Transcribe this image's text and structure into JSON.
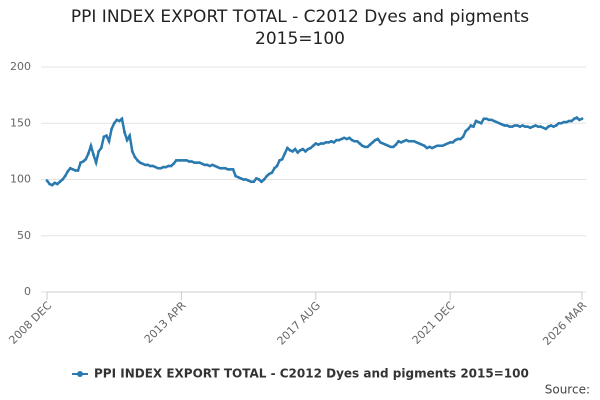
{
  "chart_data": {
    "type": "line",
    "title": "PPI INDEX EXPORT TOTAL - C2012 Dyes and pigments 2015=100",
    "source": "Source:",
    "categories": [
      "2008 DEC",
      null,
      null,
      null,
      null,
      null,
      null,
      null,
      null,
      null,
      null,
      null,
      null,
      null,
      null,
      null,
      null,
      null,
      null,
      null,
      null,
      null,
      null,
      null,
      null,
      null,
      null,
      null,
      null,
      null,
      null,
      null,
      null,
      null,
      null,
      null,
      null,
      null,
      null,
      null,
      null,
      null,
      null,
      null,
      null,
      null,
      null,
      null,
      null,
      null,
      null,
      null,
      "2013 APR",
      null,
      null,
      null,
      null,
      null,
      null,
      null,
      null,
      null,
      null,
      null,
      null,
      null,
      null,
      null,
      null,
      null,
      null,
      null,
      null,
      null,
      null,
      null,
      null,
      null,
      null,
      null,
      null,
      null,
      null,
      null,
      null,
      null,
      null,
      null,
      null,
      null,
      null,
      null,
      null,
      null,
      null,
      null,
      null,
      null,
      null,
      null,
      null,
      null,
      null,
      null,
      "2017 AUG",
      null,
      null,
      null,
      null,
      null,
      null,
      null,
      null,
      null,
      null,
      null,
      null,
      null,
      null,
      null,
      null,
      null,
      null,
      null,
      null,
      null,
      null,
      null,
      null,
      null,
      null,
      null,
      null,
      null,
      null,
      null,
      null,
      null,
      null,
      null,
      null,
      null,
      null,
      null,
      null,
      null,
      null,
      null,
      null,
      null,
      null,
      null,
      null,
      null,
      null,
      null,
      "2021 DEC",
      null,
      null,
      null,
      null,
      null,
      null,
      null,
      null,
      null,
      null,
      null,
      null,
      null,
      null,
      null,
      null,
      null,
      null,
      null,
      null,
      null,
      null,
      null,
      null,
      null,
      null,
      null,
      null,
      null,
      null,
      null,
      null,
      null,
      null,
      null,
      null,
      null,
      null,
      null,
      null,
      null,
      null,
      null,
      null,
      null,
      null,
      null,
      null,
      null,
      null,
      "2026 MAR"
    ],
    "series": [
      {
        "name": "PPI INDEX EXPORT TOTAL - C2012 Dyes and pigments 2015=100",
        "color": "#2a7ab0",
        "values": [
          99,
          96,
          95,
          97,
          96,
          98,
          100,
          103,
          107,
          110,
          109,
          108,
          108,
          115,
          116,
          118,
          123,
          130,
          122,
          115,
          125,
          128,
          138,
          139,
          134,
          145,
          150,
          153,
          152,
          154,
          142,
          135,
          139,
          125,
          120,
          117,
          115,
          114,
          113,
          113,
          112,
          112,
          111,
          110,
          110,
          111,
          111,
          112,
          112,
          114,
          117,
          117,
          117,
          117,
          117,
          116,
          116,
          115,
          115,
          115,
          114,
          113,
          113,
          112,
          113,
          112,
          111,
          110,
          110,
          110,
          109,
          109,
          109,
          103,
          102,
          101,
          100,
          100,
          99,
          98,
          98,
          101,
          100,
          98,
          100,
          103,
          105,
          106,
          110,
          112,
          117,
          118,
          123,
          128,
          126,
          125,
          127,
          124,
          126,
          127,
          125,
          127,
          128,
          130,
          132,
          131,
          132,
          132,
          133,
          133,
          134,
          133,
          135,
          135,
          136,
          137,
          136,
          137,
          135,
          134,
          134,
          132,
          130,
          129,
          129,
          131,
          133,
          135,
          136,
          133,
          132,
          131,
          130,
          129,
          129,
          131,
          134,
          133,
          134,
          135,
          134,
          134,
          134,
          133,
          132,
          131,
          130,
          128,
          129,
          128,
          129,
          130,
          130,
          130,
          131,
          132,
          133,
          133,
          135,
          136,
          136,
          138,
          143,
          145,
          148,
          147,
          152,
          151,
          150,
          154,
          154,
          153,
          153,
          152,
          151,
          150,
          149,
          148,
          148,
          147,
          147,
          148,
          148,
          147,
          148,
          147,
          147,
          146,
          147,
          148,
          147,
          147,
          146,
          145,
          147,
          148,
          147,
          148,
          150,
          150,
          151,
          151,
          152,
          152,
          154,
          155,
          153,
          154
        ]
      }
    ],
    "ylim": [
      0,
      200
    ],
    "yticks": [
      0,
      50,
      100,
      150,
      200
    ],
    "grid": true
  }
}
